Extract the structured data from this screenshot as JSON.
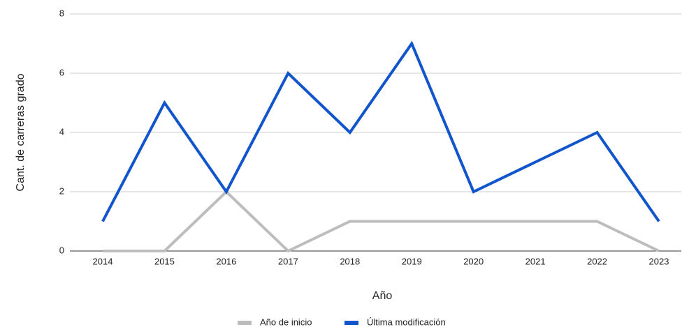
{
  "chart_data": {
    "type": "line",
    "x_label": "Año",
    "y_label": "Cant. de carreras grado",
    "categories": [
      "2014",
      "2015",
      "2016",
      "2017",
      "2018",
      "2019",
      "2020",
      "2021",
      "2022",
      "2023"
    ],
    "series": [
      {
        "name": "Año de inicio",
        "color": "#bdbdbd",
        "values": [
          0,
          0,
          2,
          0,
          1,
          1,
          1,
          1,
          1,
          0
        ]
      },
      {
        "name": "Última modificación",
        "color": "#1155cc",
        "values": [
          1,
          5,
          2,
          6,
          4,
          7,
          2,
          3,
          4,
          1
        ]
      }
    ],
    "ylim": [
      0,
      8
    ],
    "yticks": [
      0,
      2,
      4,
      6,
      8
    ],
    "grid": true,
    "legend": "bottom"
  }
}
